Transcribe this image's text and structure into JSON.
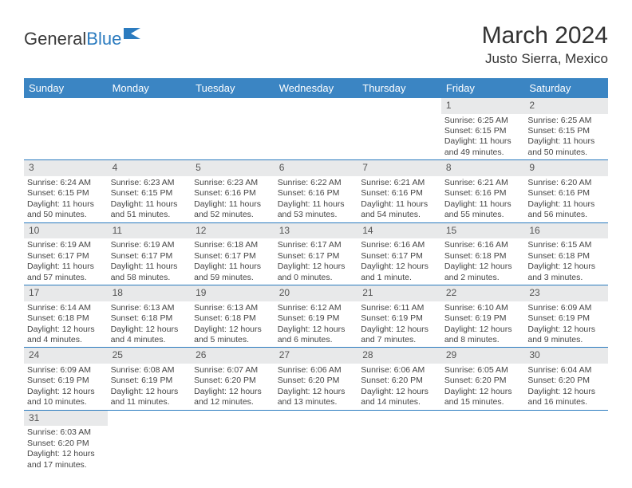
{
  "logo": {
    "text_part1": "General",
    "text_part2": "Blue"
  },
  "title": "March 2024",
  "location": "Justo Sierra, Mexico",
  "colors": {
    "header_bg": "#3b85c3",
    "header_text": "#ffffff",
    "date_bar_bg": "#e8e9ea",
    "cell_border": "#2b7bbf",
    "logo_blue": "#2b7bbf"
  },
  "weekdays": [
    "Sunday",
    "Monday",
    "Tuesday",
    "Wednesday",
    "Thursday",
    "Friday",
    "Saturday"
  ],
  "weeks": [
    [
      {
        "empty": true
      },
      {
        "empty": true
      },
      {
        "empty": true
      },
      {
        "empty": true
      },
      {
        "empty": true
      },
      {
        "date": "1",
        "sunrise": "Sunrise: 6:25 AM",
        "sunset": "Sunset: 6:15 PM",
        "daylight": "Daylight: 11 hours and 49 minutes."
      },
      {
        "date": "2",
        "sunrise": "Sunrise: 6:25 AM",
        "sunset": "Sunset: 6:15 PM",
        "daylight": "Daylight: 11 hours and 50 minutes."
      }
    ],
    [
      {
        "date": "3",
        "sunrise": "Sunrise: 6:24 AM",
        "sunset": "Sunset: 6:15 PM",
        "daylight": "Daylight: 11 hours and 50 minutes."
      },
      {
        "date": "4",
        "sunrise": "Sunrise: 6:23 AM",
        "sunset": "Sunset: 6:15 PM",
        "daylight": "Daylight: 11 hours and 51 minutes."
      },
      {
        "date": "5",
        "sunrise": "Sunrise: 6:23 AM",
        "sunset": "Sunset: 6:16 PM",
        "daylight": "Daylight: 11 hours and 52 minutes."
      },
      {
        "date": "6",
        "sunrise": "Sunrise: 6:22 AM",
        "sunset": "Sunset: 6:16 PM",
        "daylight": "Daylight: 11 hours and 53 minutes."
      },
      {
        "date": "7",
        "sunrise": "Sunrise: 6:21 AM",
        "sunset": "Sunset: 6:16 PM",
        "daylight": "Daylight: 11 hours and 54 minutes."
      },
      {
        "date": "8",
        "sunrise": "Sunrise: 6:21 AM",
        "sunset": "Sunset: 6:16 PM",
        "daylight": "Daylight: 11 hours and 55 minutes."
      },
      {
        "date": "9",
        "sunrise": "Sunrise: 6:20 AM",
        "sunset": "Sunset: 6:16 PM",
        "daylight": "Daylight: 11 hours and 56 minutes."
      }
    ],
    [
      {
        "date": "10",
        "sunrise": "Sunrise: 6:19 AM",
        "sunset": "Sunset: 6:17 PM",
        "daylight": "Daylight: 11 hours and 57 minutes."
      },
      {
        "date": "11",
        "sunrise": "Sunrise: 6:19 AM",
        "sunset": "Sunset: 6:17 PM",
        "daylight": "Daylight: 11 hours and 58 minutes."
      },
      {
        "date": "12",
        "sunrise": "Sunrise: 6:18 AM",
        "sunset": "Sunset: 6:17 PM",
        "daylight": "Daylight: 11 hours and 59 minutes."
      },
      {
        "date": "13",
        "sunrise": "Sunrise: 6:17 AM",
        "sunset": "Sunset: 6:17 PM",
        "daylight": "Daylight: 12 hours and 0 minutes."
      },
      {
        "date": "14",
        "sunrise": "Sunrise: 6:16 AM",
        "sunset": "Sunset: 6:17 PM",
        "daylight": "Daylight: 12 hours and 1 minute."
      },
      {
        "date": "15",
        "sunrise": "Sunrise: 6:16 AM",
        "sunset": "Sunset: 6:18 PM",
        "daylight": "Daylight: 12 hours and 2 minutes."
      },
      {
        "date": "16",
        "sunrise": "Sunrise: 6:15 AM",
        "sunset": "Sunset: 6:18 PM",
        "daylight": "Daylight: 12 hours and 3 minutes."
      }
    ],
    [
      {
        "date": "17",
        "sunrise": "Sunrise: 6:14 AM",
        "sunset": "Sunset: 6:18 PM",
        "daylight": "Daylight: 12 hours and 4 minutes."
      },
      {
        "date": "18",
        "sunrise": "Sunrise: 6:13 AM",
        "sunset": "Sunset: 6:18 PM",
        "daylight": "Daylight: 12 hours and 4 minutes."
      },
      {
        "date": "19",
        "sunrise": "Sunrise: 6:13 AM",
        "sunset": "Sunset: 6:18 PM",
        "daylight": "Daylight: 12 hours and 5 minutes."
      },
      {
        "date": "20",
        "sunrise": "Sunrise: 6:12 AM",
        "sunset": "Sunset: 6:19 PM",
        "daylight": "Daylight: 12 hours and 6 minutes."
      },
      {
        "date": "21",
        "sunrise": "Sunrise: 6:11 AM",
        "sunset": "Sunset: 6:19 PM",
        "daylight": "Daylight: 12 hours and 7 minutes."
      },
      {
        "date": "22",
        "sunrise": "Sunrise: 6:10 AM",
        "sunset": "Sunset: 6:19 PM",
        "daylight": "Daylight: 12 hours and 8 minutes."
      },
      {
        "date": "23",
        "sunrise": "Sunrise: 6:09 AM",
        "sunset": "Sunset: 6:19 PM",
        "daylight": "Daylight: 12 hours and 9 minutes."
      }
    ],
    [
      {
        "date": "24",
        "sunrise": "Sunrise: 6:09 AM",
        "sunset": "Sunset: 6:19 PM",
        "daylight": "Daylight: 12 hours and 10 minutes."
      },
      {
        "date": "25",
        "sunrise": "Sunrise: 6:08 AM",
        "sunset": "Sunset: 6:19 PM",
        "daylight": "Daylight: 12 hours and 11 minutes."
      },
      {
        "date": "26",
        "sunrise": "Sunrise: 6:07 AM",
        "sunset": "Sunset: 6:20 PM",
        "daylight": "Daylight: 12 hours and 12 minutes."
      },
      {
        "date": "27",
        "sunrise": "Sunrise: 6:06 AM",
        "sunset": "Sunset: 6:20 PM",
        "daylight": "Daylight: 12 hours and 13 minutes."
      },
      {
        "date": "28",
        "sunrise": "Sunrise: 6:06 AM",
        "sunset": "Sunset: 6:20 PM",
        "daylight": "Daylight: 12 hours and 14 minutes."
      },
      {
        "date": "29",
        "sunrise": "Sunrise: 6:05 AM",
        "sunset": "Sunset: 6:20 PM",
        "daylight": "Daylight: 12 hours and 15 minutes."
      },
      {
        "date": "30",
        "sunrise": "Sunrise: 6:04 AM",
        "sunset": "Sunset: 6:20 PM",
        "daylight": "Daylight: 12 hours and 16 minutes."
      }
    ],
    [
      {
        "date": "31",
        "sunrise": "Sunrise: 6:03 AM",
        "sunset": "Sunset: 6:20 PM",
        "daylight": "Daylight: 12 hours and 17 minutes."
      },
      {
        "trailing_empty": true
      },
      {
        "trailing_empty": true
      },
      {
        "trailing_empty": true
      },
      {
        "trailing_empty": true
      },
      {
        "trailing_empty": true
      },
      {
        "trailing_empty": true
      }
    ]
  ]
}
